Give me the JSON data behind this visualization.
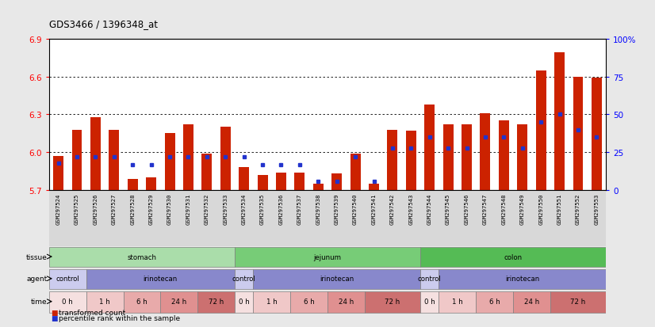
{
  "title": "GDS3466 / 1396348_at",
  "samples": [
    "GSM297524",
    "GSM297525",
    "GSM297526",
    "GSM297527",
    "GSM297528",
    "GSM297529",
    "GSM297530",
    "GSM297531",
    "GSM297532",
    "GSM297533",
    "GSM297534",
    "GSM297535",
    "GSM297536",
    "GSM297537",
    "GSM297538",
    "GSM297539",
    "GSM297540",
    "GSM297541",
    "GSM297542",
    "GSM297543",
    "GSM297544",
    "GSM297545",
    "GSM297546",
    "GSM297547",
    "GSM297548",
    "GSM297549",
    "GSM297550",
    "GSM297551",
    "GSM297552",
    "GSM297553"
  ],
  "transformed_count": [
    5.97,
    6.18,
    6.28,
    6.18,
    5.79,
    5.8,
    6.15,
    6.22,
    5.99,
    6.2,
    5.88,
    5.82,
    5.84,
    5.84,
    5.75,
    5.83,
    5.99,
    5.75,
    6.18,
    6.17,
    6.38,
    6.22,
    6.22,
    6.31,
    6.25,
    6.22,
    6.65,
    6.79,
    6.6,
    6.59
  ],
  "percentile_rank": [
    18,
    22,
    22,
    22,
    17,
    17,
    22,
    22,
    22,
    22,
    22,
    17,
    17,
    17,
    6,
    6,
    22,
    6,
    28,
    28,
    35,
    28,
    28,
    35,
    35,
    28,
    45,
    50,
    40,
    35
  ],
  "ylim_left": [
    5.7,
    6.9
  ],
  "ylim_right": [
    0,
    100
  ],
  "yticks_left": [
    5.7,
    6.0,
    6.3,
    6.6,
    6.9
  ],
  "yticks_right": [
    0,
    25,
    50,
    75,
    100
  ],
  "ytick_labels_right": [
    "0",
    "25",
    "50",
    "75",
    "100%"
  ],
  "bar_color": "#cc2200",
  "percentile_color": "#2233cc",
  "bar_bottom": 5.7,
  "tissue_groups": [
    {
      "label": "stomach",
      "start": 0,
      "end": 10,
      "color": "#aaddaa"
    },
    {
      "label": "jejunum",
      "start": 10,
      "end": 20,
      "color": "#77cc77"
    },
    {
      "label": "colon",
      "start": 20,
      "end": 30,
      "color": "#55bb55"
    }
  ],
  "agent_groups": [
    {
      "label": "control",
      "start": 0,
      "end": 2,
      "color": "#ccccee"
    },
    {
      "label": "irinotecan",
      "start": 2,
      "end": 10,
      "color": "#8888cc"
    },
    {
      "label": "control",
      "start": 10,
      "end": 11,
      "color": "#ccccee"
    },
    {
      "label": "irinotecan",
      "start": 11,
      "end": 20,
      "color": "#8888cc"
    },
    {
      "label": "control",
      "start": 20,
      "end": 21,
      "color": "#ccccee"
    },
    {
      "label": "irinotecan",
      "start": 21,
      "end": 30,
      "color": "#8888cc"
    }
  ],
  "time_groups": [
    {
      "label": "0 h",
      "start": 0,
      "end": 2,
      "color": "#f5e0e0"
    },
    {
      "label": "1 h",
      "start": 2,
      "end": 4,
      "color": "#f0c8c8"
    },
    {
      "label": "6 h",
      "start": 4,
      "end": 6,
      "color": "#e8aaaa"
    },
    {
      "label": "24 h",
      "start": 6,
      "end": 8,
      "color": "#e09090"
    },
    {
      "label": "72 h",
      "start": 8,
      "end": 10,
      "color": "#cc7070"
    },
    {
      "label": "0 h",
      "start": 10,
      "end": 11,
      "color": "#f5e0e0"
    },
    {
      "label": "1 h",
      "start": 11,
      "end": 13,
      "color": "#f0c8c8"
    },
    {
      "label": "6 h",
      "start": 13,
      "end": 15,
      "color": "#e8aaaa"
    },
    {
      "label": "24 h",
      "start": 15,
      "end": 17,
      "color": "#e09090"
    },
    {
      "label": "72 h",
      "start": 17,
      "end": 20,
      "color": "#cc7070"
    },
    {
      "label": "0 h",
      "start": 20,
      "end": 21,
      "color": "#f5e0e0"
    },
    {
      "label": "1 h",
      "start": 21,
      "end": 23,
      "color": "#f0c8c8"
    },
    {
      "label": "6 h",
      "start": 23,
      "end": 25,
      "color": "#e8aaaa"
    },
    {
      "label": "24 h",
      "start": 25,
      "end": 27,
      "color": "#e09090"
    },
    {
      "label": "72 h",
      "start": 27,
      "end": 30,
      "color": "#cc7070"
    }
  ],
  "legend_items": [
    {
      "label": "transformed count",
      "color": "#cc2200"
    },
    {
      "label": "percentile rank within the sample",
      "color": "#2233cc"
    }
  ],
  "row_labels": [
    "tissue",
    "agent",
    "time"
  ],
  "bg_color": "#e8e8e8",
  "plot_bg": "white",
  "xtick_bg": "#d8d8d8"
}
